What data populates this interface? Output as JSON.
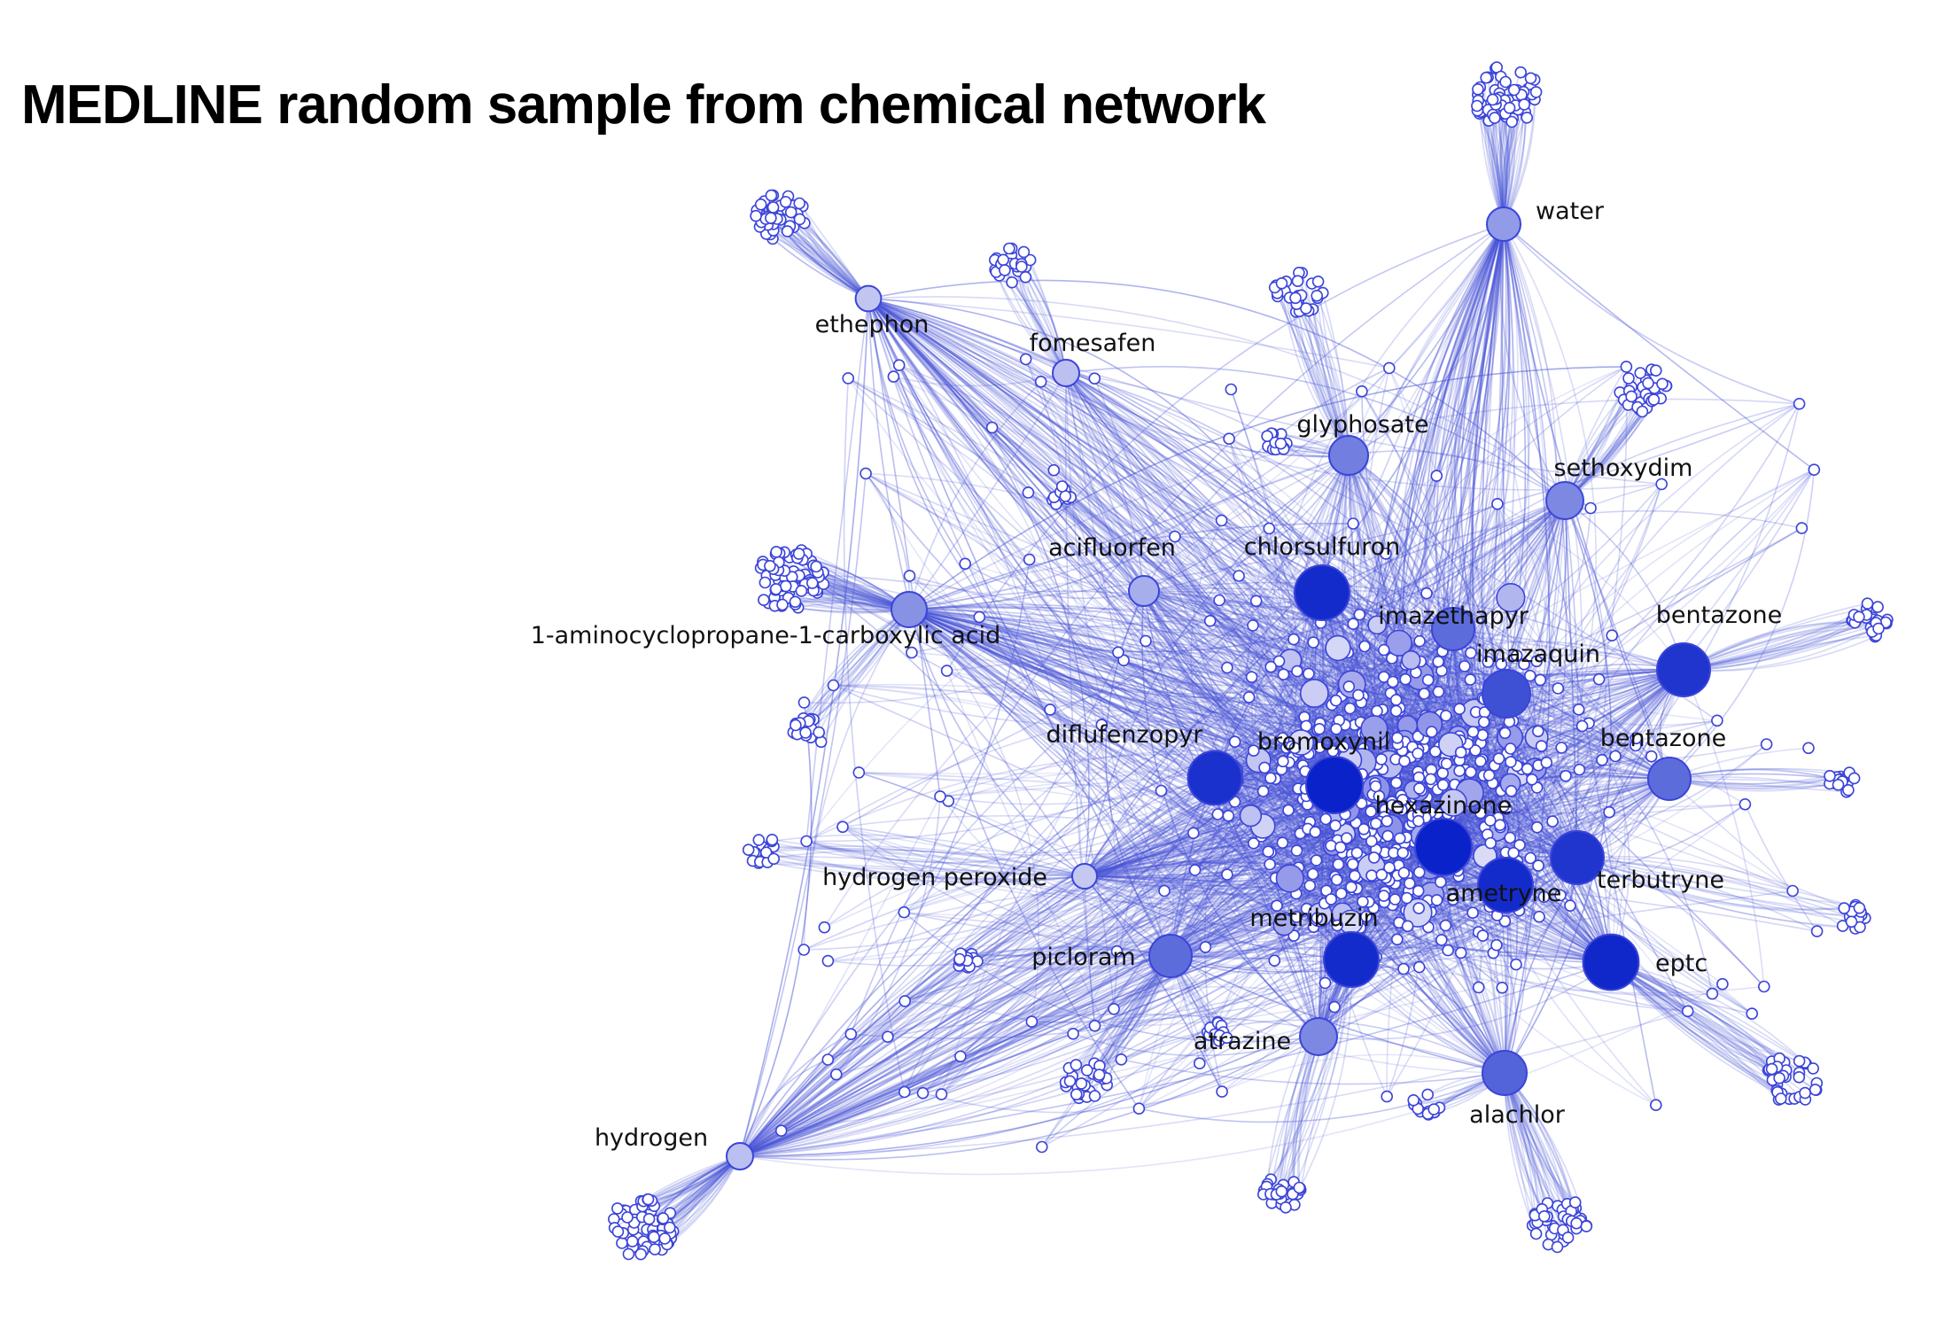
{
  "title": "MEDLINE random sample from chemical network",
  "colors": {
    "background": "#ffffff",
    "node_stroke": "#3b44d8",
    "node_light": "#dadcf7",
    "node_dark": "#0a22c9",
    "edge": "#4a55d6"
  },
  "nodes": [
    {
      "label": "water",
      "degree": 0.35
    },
    {
      "label": "ethephon",
      "degree": 0.12
    },
    {
      "label": "fomesafen",
      "degree": 0.15
    },
    {
      "label": "glyphosate",
      "degree": 0.5
    },
    {
      "label": "sethoxydim",
      "degree": 0.45
    },
    {
      "label": "acifluorfen",
      "degree": 0.25
    },
    {
      "label": "chlorsulfuron",
      "degree": 0.95
    },
    {
      "label": "1-aminocyclopropane-1-carboxylic acid",
      "degree": 0.4
    },
    {
      "label": "imazethapyr",
      "degree": 0.6
    },
    {
      "label": "imazaquin",
      "degree": 0.75
    },
    {
      "label": "bentazone",
      "degree": 0.9
    },
    {
      "label": "diflufenzopyr",
      "degree": 0.92
    },
    {
      "label": "bromoxynil",
      "degree": 1.0
    },
    {
      "label": "bentazone",
      "degree": 0.6
    },
    {
      "label": "hexazinone",
      "degree": 1.0
    },
    {
      "label": "hydrogen peroxide",
      "degree": 0.1
    },
    {
      "label": "terbutryne",
      "degree": 0.9
    },
    {
      "label": "ametryne",
      "degree": 0.95
    },
    {
      "label": "metribuzin",
      "degree": 0.95
    },
    {
      "label": "picloram",
      "degree": 0.6
    },
    {
      "label": "eptc",
      "degree": 0.97
    },
    {
      "label": "atrazine",
      "degree": 0.45
    },
    {
      "label": "alachlor",
      "degree": 0.65
    },
    {
      "label": "hydrogen",
      "degree": 0.15
    }
  ]
}
